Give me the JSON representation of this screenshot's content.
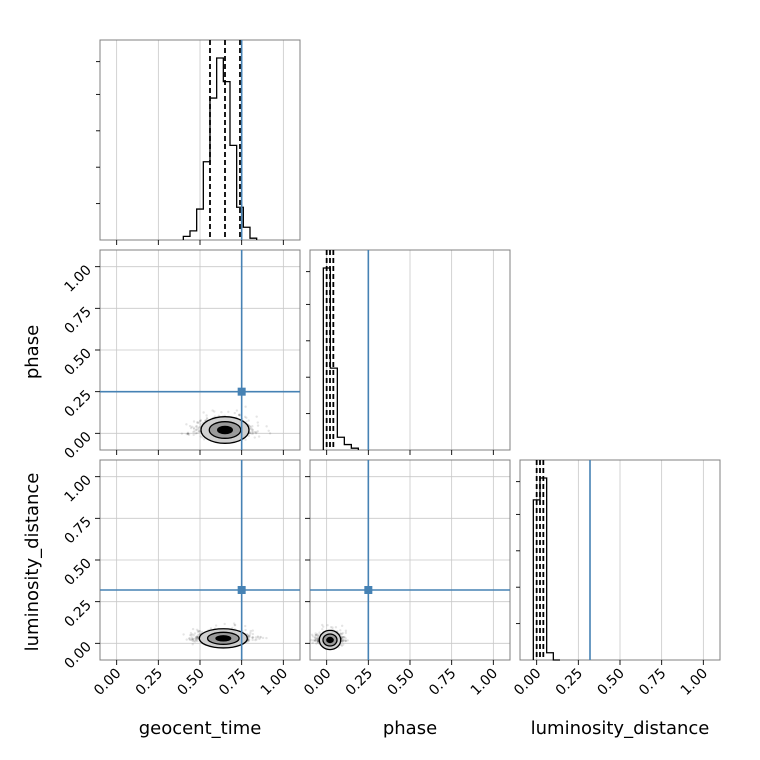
{
  "chart_data": {
    "type": "corner",
    "parameters": [
      "geocent_time",
      "phase",
      "luminosity_distance"
    ],
    "axis_range": [
      -0.1,
      1.1
    ],
    "tick_values": [
      0.0,
      0.25,
      0.5,
      0.75,
      1.0
    ],
    "tick_labels": [
      "0.00",
      "0.25",
      "0.50",
      "0.75",
      "1.00"
    ],
    "grid": true,
    "truth_color": "#4682b4",
    "truths": {
      "geocent_time": 0.75,
      "phase": 0.25,
      "luminosity_distance": 0.32
    },
    "quantiles": {
      "geocent_time": [
        0.56,
        0.65,
        0.74
      ],
      "phase": [
        0.0,
        0.02,
        0.04
      ],
      "luminosity_distance": [
        0.0,
        0.02,
        0.04
      ]
    },
    "histograms": {
      "geocent_time": {
        "edges_start": 0.4,
        "bin_width": 0.04,
        "counts": [
          2,
          5,
          17,
          43,
          78,
          100,
          87,
          52,
          18,
          7,
          1
        ]
      },
      "phase": {
        "edges_start": -0.02,
        "bin_width": 0.042,
        "counts": [
          100,
          45,
          7,
          3,
          1
        ]
      },
      "luminosity_distance": {
        "edges_start": -0.02,
        "bin_width": 0.04,
        "counts": [
          88,
          100,
          4,
          0
        ]
      }
    },
    "scatter_center": {
      "geocent_time|phase": [
        0.65,
        0.02,
        0.09,
        0.05
      ],
      "geocent_time|luminosity_distance": [
        0.64,
        0.03,
        0.09,
        0.03
      ],
      "phase|luminosity_distance": [
        0.02,
        0.02,
        0.04,
        0.03
      ]
    }
  }
}
